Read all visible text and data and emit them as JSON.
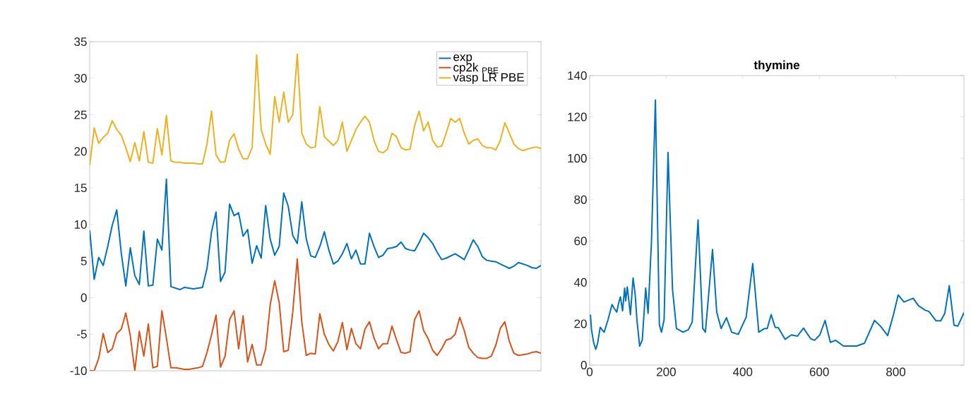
{
  "chart_data": [
    {
      "type": "line",
      "categories": [
        null,
        null,
        null,
        null,
        null,
        null,
        null,
        null,
        null,
        null,
        null,
        null,
        null,
        null,
        null,
        null,
        null,
        null,
        null,
        null,
        null,
        null,
        null,
        null,
        null,
        null,
        null,
        null,
        null,
        null,
        null,
        null,
        null,
        null,
        null,
        null,
        null,
        null,
        null,
        null,
        null,
        null,
        null,
        null,
        null,
        null,
        null,
        null,
        null,
        null,
        null,
        null,
        null,
        null,
        null,
        null,
        null,
        null,
        null,
        null,
        null,
        null,
        null,
        null,
        null,
        null,
        null,
        null,
        null,
        null,
        null,
        null,
        null,
        null,
        null,
        null,
        null,
        null,
        null,
        null,
        null,
        null,
        null,
        null,
        null,
        null,
        null,
        null,
        null,
        null,
        null,
        null,
        null,
        null,
        null,
        null,
        null,
        null,
        null,
        null,
        null
      ],
      "ylim": [
        -10,
        35
      ],
      "yticks": [
        -10,
        -5,
        0,
        5,
        10,
        15,
        20,
        25,
        30,
        35
      ],
      "tick_labels": "y",
      "legend": "top right",
      "series": [
        {
          "name": "exp",
          "color": "#0072bd",
          "values": [
            9.2,
            2.5,
            5.5,
            4.4,
            7.0,
            9.9,
            12.0,
            6.1,
            1.6,
            6.8,
            3.0,
            1.8,
            9.1,
            1.6,
            1.7,
            8.0,
            6.5,
            16.2,
            1.5,
            1.3,
            1.1,
            1.4,
            1.3,
            1.2,
            1.3,
            1.4,
            4.0,
            9.0,
            11.7,
            2.2,
            3.5,
            12.8,
            11.2,
            11.6,
            8.4,
            9.3,
            4.7,
            7.1,
            5.4,
            12.6,
            8.0,
            5.8,
            7.0,
            14.3,
            12.5,
            8.5,
            7.4,
            13.1,
            8.0,
            5.7,
            5.5,
            7.0,
            9.0,
            6.5,
            4.6,
            5.0,
            6.0,
            7.4,
            5.3,
            6.5,
            4.6,
            4.6,
            8.8,
            7.0,
            5.5,
            5.8,
            6.7,
            6.8,
            7.0,
            7.6,
            6.7,
            6.5,
            6.4,
            7.5,
            8.8,
            8.2,
            7.4,
            6.2,
            5.2,
            5.4,
            5.7,
            6.0,
            5.6,
            5.2,
            6.5,
            7.9,
            7.0,
            5.6,
            5.1,
            5.0,
            4.9,
            4.6,
            4.3,
            4.0,
            4.3,
            4.8,
            4.6,
            4.4,
            4.1,
            4.0,
            4.4
          ]
        },
        {
          "name": "cp2k $_{PBE}$",
          "color": "#d95319",
          "values": [
            -10,
            -10,
            -8.3,
            -4.9,
            -7.5,
            -7.0,
            -4.9,
            -4.3,
            -2.1,
            -5.2,
            -10,
            -4.6,
            -8.0,
            -3.6,
            -9.6,
            -9.4,
            -1.8,
            -5.5,
            -9.6,
            -9.6,
            -9.7,
            -9.8,
            -9.8,
            -9.7,
            -9.6,
            -9.4,
            -7.5,
            -5.1,
            -2.4,
            -9.5,
            -8.0,
            -3.0,
            -1.8,
            -7.0,
            -2.5,
            -8.8,
            -6.4,
            -9.2,
            -9.2,
            -7.0,
            -1.0,
            2.3,
            -0.7,
            -7.4,
            -7.2,
            -2.0,
            5.3,
            -3.3,
            -7.9,
            -7.6,
            -7.7,
            -2.2,
            -5.0,
            -6.4,
            -7.3,
            -6.0,
            -3.4,
            -7.1,
            -4.2,
            -6.3,
            -7.0,
            -4.3,
            -3.3,
            -5.5,
            -7.0,
            -6.3,
            -6.3,
            -3.9,
            -5.8,
            -7.5,
            -7.6,
            -7.4,
            -3.0,
            -1.8,
            -4.5,
            -5.6,
            -7.2,
            -7.9,
            -7.0,
            -5.8,
            -5.6,
            -5.0,
            -2.7,
            -4.5,
            -6.8,
            -7.6,
            -8.2,
            -8.3,
            -8.3,
            -8.0,
            -6.5,
            -4.2,
            -3.3,
            -6.0,
            -7.6,
            -7.9,
            -7.8,
            -7.7,
            -7.5,
            -7.4,
            -7.6
          ]
        },
        {
          "name": "vasp LR PBE",
          "color": "#edb120",
          "values": [
            18.1,
            23.2,
            21.1,
            21.9,
            22.5,
            24.2,
            23.0,
            22.2,
            20.5,
            18.6,
            21.2,
            18.7,
            22.7,
            18.5,
            18.4,
            23.1,
            19.5,
            24.9,
            18.7,
            18.5,
            18.5,
            18.4,
            18.4,
            18.4,
            18.3,
            18.3,
            21.0,
            25.5,
            19.5,
            18.5,
            18.6,
            21.5,
            22.4,
            20.3,
            19.0,
            19.0,
            20.5,
            33.2,
            23.0,
            21.0,
            19.6,
            27.5,
            24.0,
            28.1,
            24.0,
            25.0,
            33.3,
            22.5,
            21.0,
            20.5,
            20.6,
            26.1,
            22.0,
            21.4,
            20.8,
            21.5,
            24.0,
            20.0,
            21.5,
            23.0,
            24.0,
            24.8,
            24.0,
            21.5,
            20.0,
            19.8,
            20.3,
            22.5,
            22.0,
            20.5,
            20.2,
            20.3,
            23.5,
            25.5,
            22.8,
            24.0,
            21.5,
            20.6,
            20.7,
            22.5,
            24.5,
            24.0,
            24.5,
            22.5,
            21.0,
            21.5,
            21.7,
            20.8,
            20.5,
            20.5,
            20.2,
            21.5,
            23.9,
            22.5,
            21.0,
            20.4,
            20.1,
            20.3,
            20.5,
            20.6,
            20.4
          ]
        }
      ]
    },
    {
      "type": "line",
      "title": "thymine",
      "xlim": [
        0,
        978
      ],
      "ylim": [
        0,
        140
      ],
      "xticks": [
        0,
        200,
        400,
        600,
        800
      ],
      "yticks": [
        0,
        20,
        40,
        60,
        80,
        100,
        120,
        140
      ],
      "series": [
        {
          "color": "#0072bd",
          "x": [
            2,
            4.8,
            10.3,
            15.8,
            20.6,
            27.5,
            32.3,
            37.8,
            48.1,
            58.4,
            63.9,
            70.8,
            75.6,
            80.4,
            85.9,
            91.4,
            94.2,
            98.3,
            106.5,
            113.4,
            118.9,
            123.7,
            130.6,
            137.5,
            146.4,
            152.6,
            161.5,
            171.8,
            182.1,
            187.6,
            194.5,
            204.8,
            216.5,
            226.8,
            244.0,
            257.7,
            268.0,
            283.2,
            295.5,
            302.4,
            321.0,
            332.0,
            343.6,
            357.4,
            371.1,
            388.3,
            408.9,
            426.1,
            441.9,
            457.1,
            463.9,
            474.2,
            484.5,
            492.8,
            510.7,
            527.2,
            542.9,
            558.8,
            577.3,
            587.6,
            601.4,
            615.1,
            628.9,
            642.6,
            663.3,
            677.0,
            697.6,
            718.2,
            744.3,
            759.5,
            778.7,
            793.8,
            806.2,
            821.3,
            845.4,
            859.1,
            876.3,
            886.6,
            905.2,
            917.5,
            927.9,
            939.6,
            952.0,
            962.2,
            978
          ],
          "values": [
            24.4,
            17.1,
            11.0,
            7.6,
            10.4,
            18.3,
            17.1,
            15.9,
            22.0,
            29.3,
            27.5,
            25.6,
            29.9,
            33.0,
            26.2,
            37.2,
            31.1,
            37.8,
            24.4,
            42.1,
            34.2,
            21.4,
            9.2,
            12.2,
            37.2,
            25.0,
            59.8,
            128.2,
            19.5,
            15.9,
            22.0,
            102.8,
            36.6,
            17.7,
            15.9,
            17.1,
            20.8,
            70.2,
            17.7,
            15.9,
            55.9,
            25.6,
            17.7,
            22.9,
            15.9,
            14.9,
            23.2,
            49.1,
            15.9,
            17.7,
            17.7,
            24.4,
            18.3,
            18.1,
            12.5,
            14.6,
            14.0,
            17.9,
            12.8,
            12.0,
            14.6,
            21.6,
            11.0,
            12.0,
            9.2,
            9.2,
            9.2,
            10.6,
            21.6,
            18.9,
            14.3,
            24.4,
            33.9,
            30.5,
            32.3,
            28.7,
            26.6,
            25.9,
            21.4,
            21.4,
            25.0,
            38.4,
            19.3,
            18.9,
            25.4
          ]
        }
      ]
    }
  ]
}
